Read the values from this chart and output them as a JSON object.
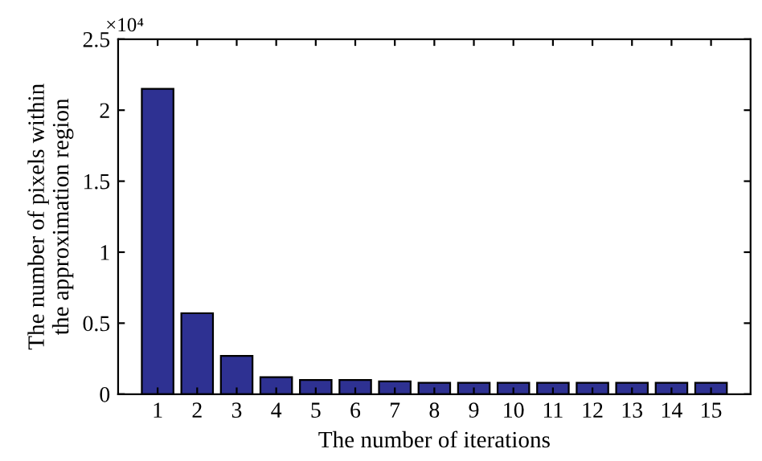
{
  "chart_data": {
    "type": "bar",
    "xlabel": "The number of iterations",
    "ylabel": "The number of pixels within\nthe approximation region",
    "categories": [
      "1",
      "2",
      "3",
      "4",
      "5",
      "6",
      "7",
      "8",
      "9",
      "10",
      "11",
      "12",
      "13",
      "14",
      "15"
    ],
    "values": [
      2.15,
      0.57,
      0.27,
      0.12,
      0.1,
      0.1,
      0.09,
      0.08,
      0.08,
      0.08,
      0.08,
      0.08,
      0.08,
      0.08,
      0.08
    ],
    "color": "#2e3192",
    "ylim": [
      0,
      2.5
    ],
    "yticks": [
      0,
      0.5,
      1,
      1.5,
      2,
      2.5
    ],
    "annotations": [
      "×10⁴"
    ],
    "grid": false,
    "legend": false
  }
}
